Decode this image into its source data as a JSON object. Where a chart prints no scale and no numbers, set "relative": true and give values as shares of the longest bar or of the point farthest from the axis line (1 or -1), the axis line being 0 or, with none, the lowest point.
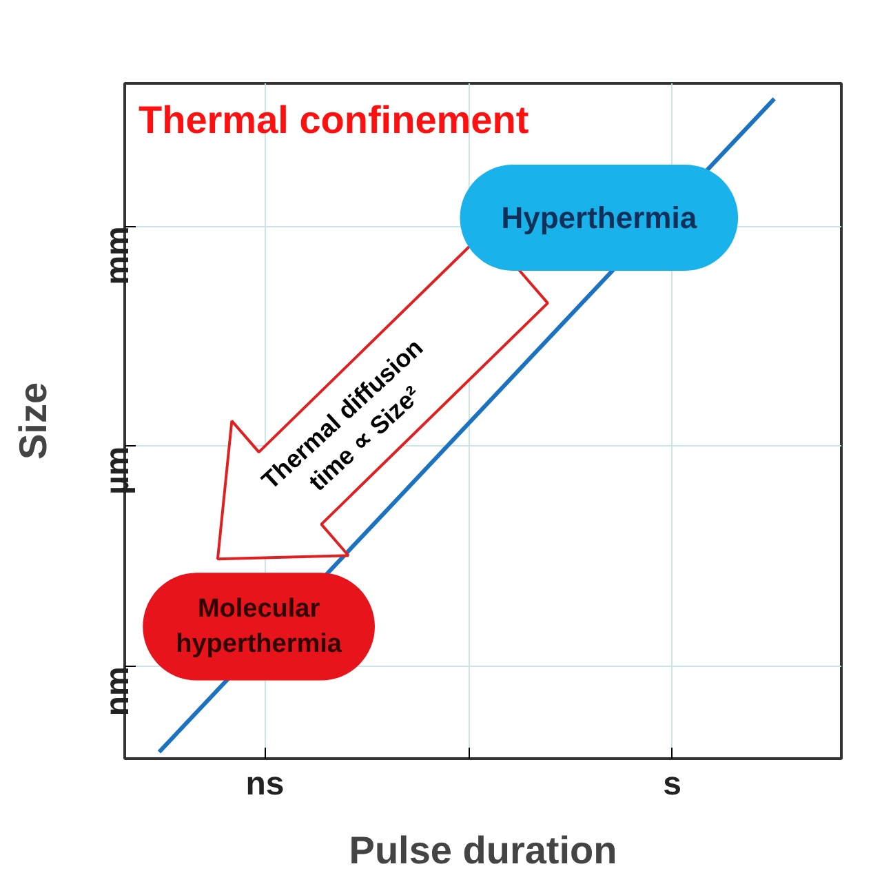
{
  "chart_data": {
    "type": "line",
    "title": "Thermal confinement",
    "xlabel": "Pulse duration",
    "ylabel": "Size",
    "relative": true,
    "categories": [
      null,
      null
    ],
    "series": [
      {
        "color": "#1a72c0",
        "values": [
          0,
          1
        ]
      }
    ],
    "grid": true,
    "marker": "none",
    "line_style": "solid",
    "annotations": [
      "Hyperthermia",
      "Molecular hyperthermia",
      "Thermal diffusion time ∝ Size²",
      "ns",
      "s",
      "nm",
      "µm",
      "mm"
    ]
  }
}
